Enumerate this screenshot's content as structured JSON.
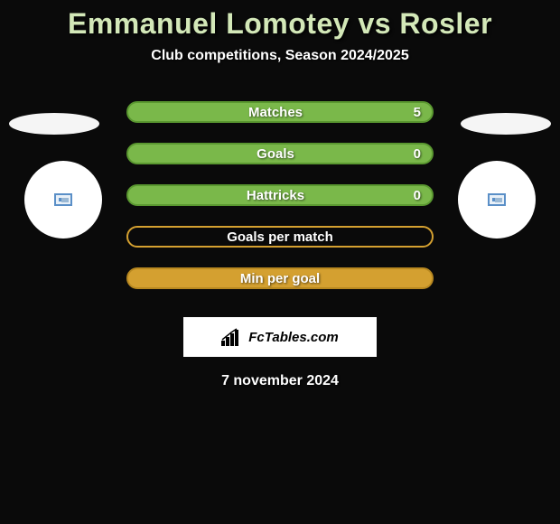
{
  "title": "Emmanuel Lomotey vs Rosler",
  "subtitle": "Club competitions, Season 2024/2025",
  "colors": {
    "background": "#0a0a0a",
    "title_color": "#d3e8b8",
    "text_color": "#ffffff",
    "ellipse_color": "#f5f5f5",
    "badge_bg": "#ffffff"
  },
  "stats": [
    {
      "label": "Matches",
      "value_left": null,
      "value_right": "5",
      "bar_fill": "#7ab84a",
      "bar_border": "#5a9830",
      "label_offset": "-10px"
    },
    {
      "label": "Goals",
      "value_left": null,
      "value_right": "0",
      "bar_fill": "#7ab84a",
      "bar_border": "#5a9830",
      "label_offset": "-10px"
    },
    {
      "label": "Hattricks",
      "value_left": null,
      "value_right": "0",
      "bar_fill": "#7ab84a",
      "bar_border": "#5a9830",
      "label_offset": "-10px"
    },
    {
      "label": "Goals per match",
      "value_left": null,
      "value_right": null,
      "bar_fill": "transparent",
      "bar_border": "#d4a030",
      "label_offset": "0"
    },
    {
      "label": "Min per goal",
      "value_left": null,
      "value_right": null,
      "bar_fill": "#d4a030",
      "bar_border": "#b88820",
      "label_offset": "0"
    }
  ],
  "branding": {
    "text": "FcTables.com"
  },
  "date": "7 november 2024"
}
